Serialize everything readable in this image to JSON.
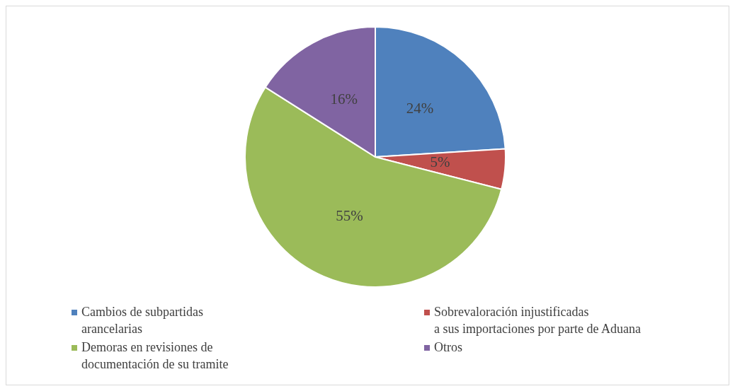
{
  "chart_data": {
    "type": "pie",
    "categories": [
      "Cambios de subpartidas\narancelarias",
      "Sobrevaloración injustificadas\na sus importaciones por parte de Aduana",
      "Demoras en revisiones de\ndocumentación de su tramite",
      "Otros"
    ],
    "values": [
      24,
      5,
      55,
      16
    ],
    "colors": [
      "#4f81bd",
      "#c0504d",
      "#9bbb59",
      "#8064a2"
    ],
    "value_labels": [
      "24%",
      "5%",
      "55%",
      "16%"
    ],
    "legend": "bottom"
  }
}
